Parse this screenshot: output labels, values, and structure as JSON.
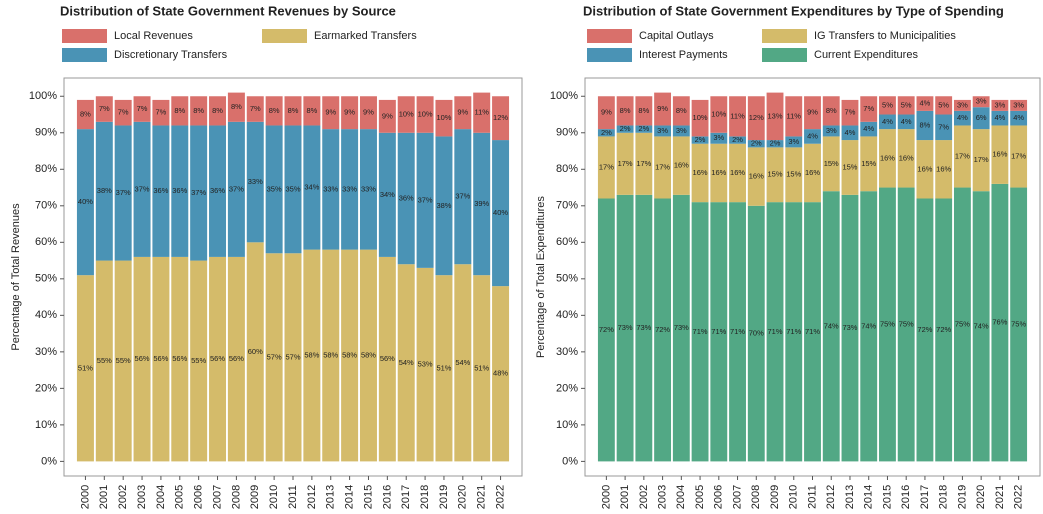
{
  "chart_data": [
    {
      "type": "bar",
      "stacked": true,
      "title": "Distribution of State Government Revenues by Source",
      "y_label": "Percentage of Total Revenues",
      "categories": [
        "2000",
        "2001",
        "2002",
        "2003",
        "2004",
        "2005",
        "2006",
        "2007",
        "2008",
        "2009",
        "2010",
        "2011",
        "2012",
        "2013",
        "2014",
        "2015",
        "2016",
        "2017",
        "2018",
        "2019",
        "2020",
        "2021",
        "2022"
      ],
      "series": [
        {
          "name": "Earmarked Transfers",
          "color": "#d4bb6a",
          "values": [
            51,
            55,
            55,
            56,
            56,
            56,
            55,
            56,
            56,
            60,
            57,
            57,
            58,
            58,
            58,
            58,
            56,
            54,
            53,
            51,
            54,
            51,
            48
          ],
          "value_labels": [
            "51%",
            "55%",
            "55%",
            "56%",
            "56%",
            "56%",
            "55%",
            "56%",
            "56%",
            "60%",
            "57%",
            "57%",
            "58%",
            "58%",
            "58%",
            "58%",
            "56%",
            "54%",
            "53%",
            "51%",
            "54%",
            "51%",
            "48%"
          ]
        },
        {
          "name": "Discretionary Transfers",
          "color": "#4a93b5",
          "values": [
            40,
            38,
            37,
            37,
            36,
            36,
            37,
            36,
            37,
            33,
            35,
            35,
            34,
            33,
            33,
            33,
            34,
            36,
            37,
            38,
            37,
            39,
            40
          ],
          "value_labels": [
            "40%",
            "38%",
            "37%",
            "37%",
            "36%",
            "36%",
            "37%",
            "36%",
            "37%",
            "33%",
            "35%",
            "35%",
            "34%",
            "33%",
            "33%",
            "33%",
            "34%",
            "36%",
            "37%",
            "38%",
            "37%",
            "39%",
            "40%"
          ]
        },
        {
          "name": "Local Revenues",
          "color": "#d9706b",
          "values": [
            8,
            7,
            7,
            7,
            7,
            8,
            8,
            8,
            8,
            7,
            8,
            8,
            8,
            9,
            9,
            9,
            9,
            10,
            10,
            10,
            9,
            11,
            12
          ],
          "value_labels": [
            "8%",
            "7%",
            "7%",
            "7%",
            "7%",
            "8%",
            "8%",
            "8%",
            "8%",
            "7%",
            "8%",
            "8%",
            "8%",
            "9%",
            "9%",
            "9%",
            "9%",
            "10%",
            "10%",
            "10%",
            "9%",
            "11%",
            "12%"
          ]
        }
      ],
      "ylim": [
        -4,
        105
      ],
      "yticks": [
        {
          "value": 0,
          "label": "0%"
        },
        {
          "value": 10,
          "label": "10%"
        },
        {
          "value": 20,
          "label": "20%"
        },
        {
          "value": 30,
          "label": "30%"
        },
        {
          "value": 40,
          "label": "40%"
        },
        {
          "value": 50,
          "label": "50%"
        },
        {
          "value": 60,
          "label": "60%"
        },
        {
          "value": 70,
          "label": "70%"
        },
        {
          "value": 80,
          "label": "80%"
        },
        {
          "value": 90,
          "label": "90%"
        },
        {
          "value": 100,
          "label": "100%"
        }
      ]
    },
    {
      "type": "bar",
      "stacked": true,
      "title": "Distribution of State Government Expenditures by Type of Spending",
      "y_label": "Percentage of Total Expenditures",
      "categories": [
        "2000",
        "2001",
        "2002",
        "2003",
        "2004",
        "2005",
        "2006",
        "2007",
        "2008",
        "2009",
        "2010",
        "2011",
        "2012",
        "2013",
        "2014",
        "2015",
        "2016",
        "2017",
        "2018",
        "2019",
        "2020",
        "2021",
        "2022"
      ],
      "series": [
        {
          "name": "Current Expenditures",
          "color": "#52a885",
          "values": [
            72,
            73,
            73,
            72,
            73,
            71,
            71,
            71,
            70,
            71,
            71,
            71,
            74,
            73,
            74,
            75,
            75,
            72,
            72,
            75,
            74,
            76,
            75
          ],
          "value_labels": [
            "72%",
            "73%",
            "73%",
            "72%",
            "73%",
            "71%",
            "71%",
            "71%",
            "70%",
            "71%",
            "71%",
            "71%",
            "74%",
            "73%",
            "74%",
            "75%",
            "75%",
            "72%",
            "72%",
            "75%",
            "74%",
            "76%",
            "75%"
          ]
        },
        {
          "name": "IG Transfers to Municipalities",
          "color": "#d4bb6a",
          "values": [
            17,
            17,
            17,
            17,
            16,
            16,
            16,
            16,
            16,
            15,
            15,
            16,
            15,
            15,
            15,
            16,
            16,
            16,
            16,
            17,
            17,
            16,
            17
          ],
          "value_labels": [
            "17%",
            "17%",
            "17%",
            "17%",
            "16%",
            "16%",
            "16%",
            "16%",
            "16%",
            "15%",
            "15%",
            "16%",
            "15%",
            "15%",
            "15%",
            "16%",
            "16%",
            "16%",
            "16%",
            "17%",
            "17%",
            "16%",
            "17%"
          ]
        },
        {
          "name": "Interest Payments",
          "color": "#4a93b5",
          "values": [
            2,
            2,
            2,
            3,
            3,
            2,
            3,
            2,
            2,
            2,
            3,
            4,
            3,
            4,
            4,
            4,
            4,
            8,
            7,
            4,
            6,
            4,
            4
          ],
          "value_labels": [
            "2%",
            "2%",
            "2%",
            "3%",
            "3%",
            "2%",
            "3%",
            "2%",
            "2%",
            "2%",
            "3%",
            "4%",
            "3%",
            "4%",
            "4%",
            "4%",
            "4%",
            "8%",
            "7%",
            "4%",
            "6%",
            "4%",
            "4%"
          ]
        },
        {
          "name": "Capital Outlays",
          "color": "#d9706b",
          "values": [
            9,
            8,
            8,
            9,
            8,
            10,
            10,
            11,
            12,
            13,
            11,
            9,
            8,
            7,
            7,
            5,
            5,
            4,
            5,
            3,
            3,
            3,
            3
          ],
          "value_labels": [
            "9%",
            "8%",
            "8%",
            "9%",
            "8%",
            "10%",
            "10%",
            "11%",
            "12%",
            "13%",
            "11%",
            "9%",
            "8%",
            "7%",
            "7%",
            "5%",
            "5%",
            "4%",
            "5%",
            "3%",
            "3%",
            "3%",
            "3%"
          ]
        }
      ],
      "ylim": [
        -4,
        105
      ],
      "yticks": [
        {
          "value": 0,
          "label": "0%"
        },
        {
          "value": 10,
          "label": "10%"
        },
        {
          "value": 20,
          "label": "20%"
        },
        {
          "value": 30,
          "label": "30%"
        },
        {
          "value": 40,
          "label": "40%"
        },
        {
          "value": 50,
          "label": "50%"
        },
        {
          "value": 60,
          "label": "60%"
        },
        {
          "value": 70,
          "label": "70%"
        },
        {
          "value": 80,
          "label": "80%"
        },
        {
          "value": 90,
          "label": "90%"
        },
        {
          "value": 100,
          "label": "100%"
        }
      ]
    }
  ]
}
